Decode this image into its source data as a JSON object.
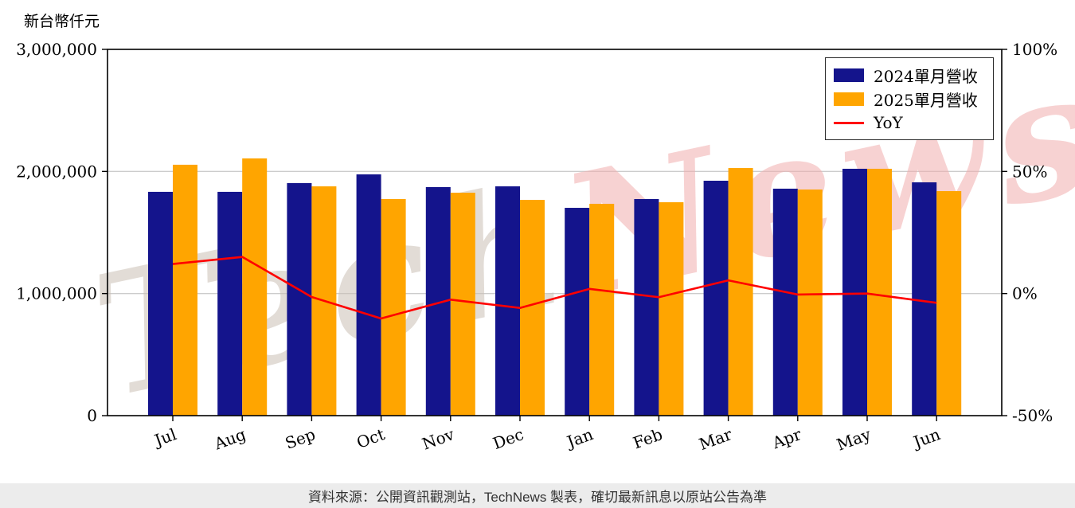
{
  "page": {
    "footer_text": "資料來源：公開資訊觀測站，TechNews 製表，確切最新訊息以原站公告為準",
    "watermark": {
      "part1": "Tech",
      "part2": "News"
    }
  },
  "chart_data": {
    "type": "bar",
    "categories": [
      "Jul",
      "Aug",
      "Sep",
      "Oct",
      "Nov",
      "Dec",
      "Jan",
      "Feb",
      "Mar",
      "Apr",
      "May",
      "Jun"
    ],
    "series": [
      {
        "name": "2024單月營收",
        "type": "bar",
        "yaxis": "left",
        "color": "#14148c",
        "values": [
          1833000,
          1833000,
          1905000,
          1976000,
          1872000,
          1878000,
          1702000,
          1774000,
          1924000,
          1859000,
          2022000,
          1911000
        ]
      },
      {
        "name": "2025單月營收",
        "type": "bar",
        "yaxis": "left",
        "color": "#ffa500",
        "values": [
          2055000,
          2107000,
          1878000,
          1774000,
          1826000,
          1767000,
          1735000,
          1748000,
          2028000,
          1852000,
          2022000,
          1839000
        ]
      },
      {
        "name": "YoY",
        "type": "line",
        "yaxis": "right",
        "color": "#ff0000",
        "values": [
          12.1,
          15.0,
          -1.4,
          -10.2,
          -2.5,
          -5.9,
          1.9,
          -1.5,
          5.4,
          -0.4,
          0.0,
          -3.8
        ]
      }
    ],
    "left_axis": {
      "title": "新台幣仟元",
      "min": 0,
      "max": 3000000,
      "ticks": [
        {
          "value": 3000000,
          "label": "3,000,000"
        },
        {
          "value": 2000000,
          "label": "2,000,000"
        },
        {
          "value": 1000000,
          "label": "1,000,000"
        },
        {
          "value": 0,
          "label": "0"
        }
      ]
    },
    "right_axis": {
      "min": -50,
      "max": 100,
      "unit": "%",
      "ticks": [
        {
          "value": 100,
          "label": "100%"
        },
        {
          "value": 50,
          "label": "50%"
        },
        {
          "value": 0,
          "label": "0%"
        },
        {
          "value": -50,
          "label": "-50%"
        }
      ]
    },
    "gridlines": [
      1000000,
      2000000
    ],
    "legend_position": "top-right",
    "grid_on": true,
    "colors": {
      "grid": "#cccccc",
      "frame": "#000000",
      "watermark_gray": "#cbc1b6",
      "watermark_pink": "#f2aeae",
      "footer_bg": "#ececec"
    }
  }
}
